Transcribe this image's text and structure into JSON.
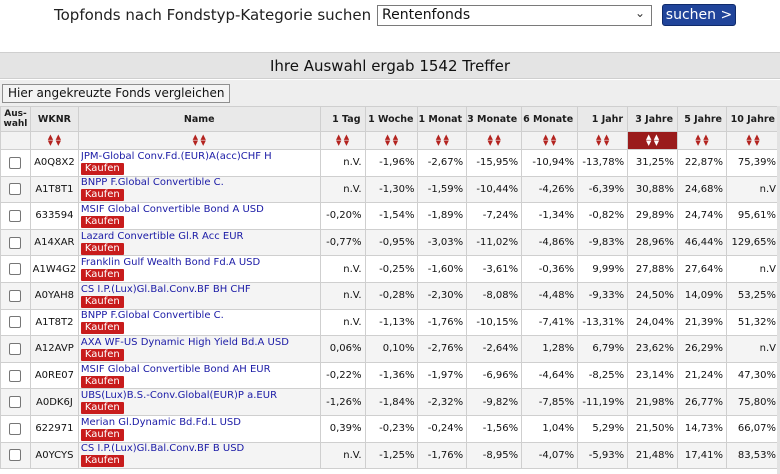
{
  "search": {
    "label": "Topfonds nach Fondstyp-Kategorie suchen",
    "selected": "Rentenfonds",
    "button": "suchen >"
  },
  "results": {
    "text": "Ihre Auswahl ergab 1542 Treffer"
  },
  "compare_button": "Hier angekreuzte Fonds vergleichen",
  "columns": {
    "auswahl_line1": "Aus-",
    "auswahl_line2": "wahl",
    "wknr": "WKNR",
    "name": "Name",
    "p1": "1 Tag",
    "p2": "1 Woche",
    "p3": "1 Monat",
    "p4": "3 Monate",
    "p5": "6 Monate",
    "p6": "1 Jahr",
    "p7": "3 Jahre",
    "p8": "5 Jahre",
    "p9": "10 Jahre"
  },
  "buy_label": "Kaufen",
  "funds": [
    {
      "wkn": "A0Q8X2",
      "name": "JPM-Global Conv.Fd.(EUR)A(acc)CHF H",
      "v": [
        "n.V.",
        "-1,96%",
        "-2,67%",
        "-15,95%",
        "-10,94%",
        "-13,78%",
        "31,25%",
        "22,87%",
        "75,39%"
      ]
    },
    {
      "wkn": "A1T8T1",
      "name": "BNPP F.Global Convertible C.",
      "v": [
        "n.V.",
        "-1,30%",
        "-1,59%",
        "-10,44%",
        "-4,26%",
        "-6,39%",
        "30,88%",
        "24,68%",
        "n.V"
      ]
    },
    {
      "wkn": "633594",
      "name": "MSIF Global Convertible Bond A USD",
      "v": [
        "-0,20%",
        "-1,54%",
        "-1,89%",
        "-7,24%",
        "-1,34%",
        "-0,82%",
        "29,89%",
        "24,74%",
        "95,61%"
      ]
    },
    {
      "wkn": "A14XAR",
      "name": "Lazard Convertible Gl.R Acc EUR",
      "v": [
        "-0,77%",
        "-0,95%",
        "-3,03%",
        "-11,02%",
        "-4,86%",
        "-9,83%",
        "28,96%",
        "46,44%",
        "129,65%"
      ]
    },
    {
      "wkn": "A1W4G2",
      "name": "Franklin Gulf Wealth Bond Fd.A USD",
      "v": [
        "n.V.",
        "-0,25%",
        "-1,60%",
        "-3,61%",
        "-0,36%",
        "9,99%",
        "27,88%",
        "27,64%",
        "n.V"
      ]
    },
    {
      "wkn": "A0YAH8",
      "name": "CS I.P.(Lux)Gl.Bal.Conv.BF BH CHF",
      "v": [
        "n.V.",
        "-0,28%",
        "-2,30%",
        "-8,08%",
        "-4,48%",
        "-9,33%",
        "24,50%",
        "14,09%",
        "53,25%"
      ]
    },
    {
      "wkn": "A1T8T2",
      "name": "BNPP F.Global Convertible C.",
      "v": [
        "n.V.",
        "-1,13%",
        "-1,76%",
        "-10,15%",
        "-7,41%",
        "-13,31%",
        "24,04%",
        "21,39%",
        "51,32%"
      ]
    },
    {
      "wkn": "A12AVP",
      "name": "AXA WF-US Dynamic High Yield Bd.A USD",
      "v": [
        "0,06%",
        "0,10%",
        "-2,76%",
        "-2,64%",
        "1,28%",
        "6,79%",
        "23,62%",
        "26,29%",
        "n.V"
      ]
    },
    {
      "wkn": "A0RE07",
      "name": "MSIF Global Convertible Bond AH EUR",
      "v": [
        "-0,22%",
        "-1,36%",
        "-1,97%",
        "-6,96%",
        "-4,64%",
        "-8,25%",
        "23,14%",
        "21,24%",
        "47,30%"
      ]
    },
    {
      "wkn": "A0DK6J",
      "name": "UBS(Lux)B.S.-Conv.Global(EUR)P a.EUR",
      "v": [
        "-1,26%",
        "-1,84%",
        "-2,32%",
        "-9,82%",
        "-7,85%",
        "-11,19%",
        "21,98%",
        "26,77%",
        "75,80%"
      ]
    },
    {
      "wkn": "622971",
      "name": "Merian Gl.Dynamic Bd.Fd.L USD",
      "v": [
        "0,39%",
        "-0,23%",
        "-0,24%",
        "-1,56%",
        "1,04%",
        "5,29%",
        "21,50%",
        "14,73%",
        "66,07%"
      ]
    },
    {
      "wkn": "A0YCYS",
      "name": "CS I.P.(Lux)Gl.Bal.Conv.BF B USD",
      "v": [
        "n.V.",
        "-1,25%",
        "-1,76%",
        "-8,95%",
        "-4,07%",
        "-5,93%",
        "21,48%",
        "17,41%",
        "83,53%"
      ]
    }
  ]
}
